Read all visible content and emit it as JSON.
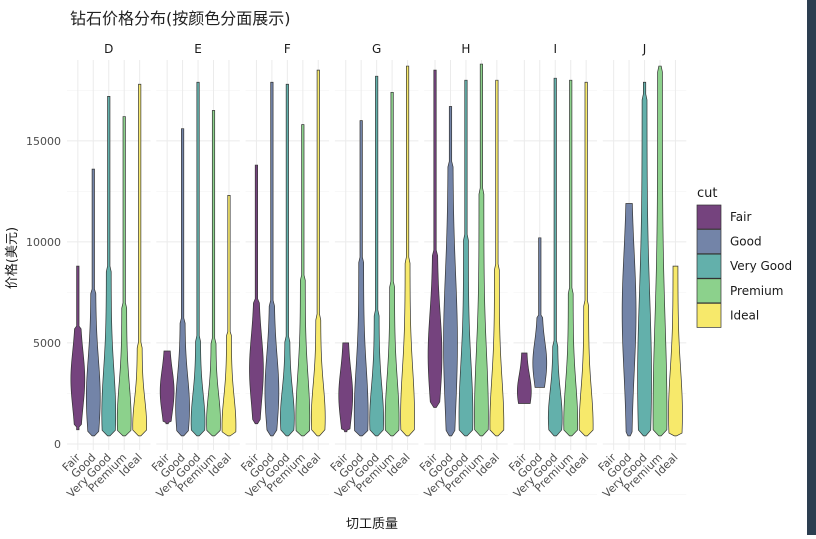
{
  "chart_data": {
    "type": "violin",
    "title": "钻石价格分布(按颜色分面展示)",
    "xlabel": "切工质量",
    "ylabel": "价格(美元)",
    "ylim": [
      -300,
      19000
    ],
    "yticks": [
      0,
      5000,
      10000,
      15000
    ],
    "grid": true,
    "legend": {
      "title": "cut",
      "position": "right"
    },
    "categories": [
      "Fair",
      "Good",
      "Very Good",
      "Premium",
      "Ideal"
    ],
    "colors": {
      "Fair": "#75437e",
      "Good": "#7384a8",
      "Very Good": "#63b0ab",
      "Premium": "#8cd18c",
      "Ideal": "#f7e96b"
    },
    "facets": [
      {
        "name": "D",
        "violins": [
          {
            "cut": "Fair",
            "min": 700,
            "max": 8800,
            "bulk": [
              900,
              5800
            ],
            "peak": 3200
          },
          {
            "cut": "Good",
            "min": 400,
            "max": 13600,
            "bulk": [
              500,
              7600
            ],
            "peak": 2300
          },
          {
            "cut": "Very Good",
            "min": 400,
            "max": 17200,
            "bulk": [
              450,
              8600
            ],
            "peak": 1500
          },
          {
            "cut": "Premium",
            "min": 400,
            "max": 16200,
            "bulk": [
              450,
              6800
            ],
            "peak": 1200
          },
          {
            "cut": "Ideal",
            "min": 400,
            "max": 17800,
            "bulk": [
              450,
              5000
            ],
            "peak": 900
          }
        ]
      },
      {
        "name": "E",
        "violins": [
          {
            "cut": "Fair",
            "min": 1000,
            "max": 4600,
            "bulk": [
              1100,
              4600
            ],
            "peak": 2600
          },
          {
            "cut": "Good",
            "min": 400,
            "max": 15600,
            "bulk": [
              500,
              6000
            ],
            "peak": 1800
          },
          {
            "cut": "Very Good",
            "min": 400,
            "max": 17900,
            "bulk": [
              450,
              5300
            ],
            "peak": 1100
          },
          {
            "cut": "Premium",
            "min": 400,
            "max": 16500,
            "bulk": [
              450,
              5200
            ],
            "peak": 1100
          },
          {
            "cut": "Ideal",
            "min": 400,
            "max": 12300,
            "bulk": [
              450,
              5500
            ],
            "peak": 900
          }
        ]
      },
      {
        "name": "F",
        "violins": [
          {
            "cut": "Fair",
            "min": 1000,
            "max": 13800,
            "bulk": [
              1100,
              7000
            ],
            "peak": 3700
          },
          {
            "cut": "Good",
            "min": 400,
            "max": 17900,
            "bulk": [
              450,
              7000
            ],
            "peak": 2600
          },
          {
            "cut": "Very Good",
            "min": 400,
            "max": 17800,
            "bulk": [
              450,
              5300
            ],
            "peak": 1300
          },
          {
            "cut": "Premium",
            "min": 400,
            "max": 15800,
            "bulk": [
              450,
              8300
            ],
            "peak": 1300
          },
          {
            "cut": "Ideal",
            "min": 400,
            "max": 18500,
            "bulk": [
              450,
              6300
            ],
            "peak": 1300
          }
        ]
      },
      {
        "name": "G",
        "violins": [
          {
            "cut": "Fair",
            "min": 600,
            "max": 5000,
            "bulk": [
              700,
              5000
            ],
            "peak": 2400
          },
          {
            "cut": "Good",
            "min": 400,
            "max": 16000,
            "bulk": [
              500,
              9000
            ],
            "peak": 1500
          },
          {
            "cut": "Very Good",
            "min": 400,
            "max": 18200,
            "bulk": [
              450,
              6500
            ],
            "peak": 1200
          },
          {
            "cut": "Premium",
            "min": 400,
            "max": 17400,
            "bulk": [
              450,
              8000
            ],
            "peak": 1200
          },
          {
            "cut": "Ideal",
            "min": 400,
            "max": 18700,
            "bulk": [
              450,
              9200
            ],
            "peak": 1400
          }
        ]
      },
      {
        "name": "H",
        "violins": [
          {
            "cut": "Fair",
            "min": 1800,
            "max": 18500,
            "bulk": [
              1900,
              9500
            ],
            "peak": 4400
          },
          {
            "cut": "Good",
            "min": 400,
            "max": 16700,
            "bulk": [
              450,
              13800
            ],
            "peak": 5000
          },
          {
            "cut": "Very Good",
            "min": 400,
            "max": 18000,
            "bulk": [
              450,
              10200
            ],
            "peak": 1400
          },
          {
            "cut": "Premium",
            "min": 400,
            "max": 18800,
            "bulk": [
              450,
              12500
            ],
            "peak": 1400
          },
          {
            "cut": "Ideal",
            "min": 400,
            "max": 18000,
            "bulk": [
              450,
              8800
            ],
            "peak": 1000
          }
        ]
      },
      {
        "name": "I",
        "violins": [
          {
            "cut": "Fair",
            "min": 2000,
            "max": 4500,
            "bulk": [
              2000,
              4500
            ],
            "peak": 2600
          },
          {
            "cut": "Good",
            "min": 2800,
            "max": 10200,
            "bulk": [
              2800,
              6300
            ],
            "peak": 4000
          },
          {
            "cut": "Very Good",
            "min": 400,
            "max": 18100,
            "bulk": [
              450,
              5000
            ],
            "peak": 1300
          },
          {
            "cut": "Premium",
            "min": 400,
            "max": 18000,
            "bulk": [
              450,
              7500
            ],
            "peak": 1100
          },
          {
            "cut": "Ideal",
            "min": 400,
            "max": 17900,
            "bulk": [
              450,
              7100
            ],
            "peak": 900
          }
        ]
      },
      {
        "name": "J",
        "violins": [
          {
            "cut": "Fair",
            "min": null,
            "max": null,
            "bulk": null,
            "peak": null
          },
          {
            "cut": "Good",
            "min": 400,
            "max": 11900,
            "bulk": [
              450,
              11900
            ],
            "peak": 6500
          },
          {
            "cut": "Very Good",
            "min": 400,
            "max": 17900,
            "bulk": [
              450,
              17100
            ],
            "peak": 3200
          },
          {
            "cut": "Premium",
            "min": 400,
            "max": 18700,
            "bulk": [
              450,
              18400
            ],
            "peak": 1500
          },
          {
            "cut": "Ideal",
            "min": 400,
            "max": 8800,
            "bulk": [
              450,
              8800
            ],
            "peak": 1500
          }
        ]
      }
    ]
  }
}
